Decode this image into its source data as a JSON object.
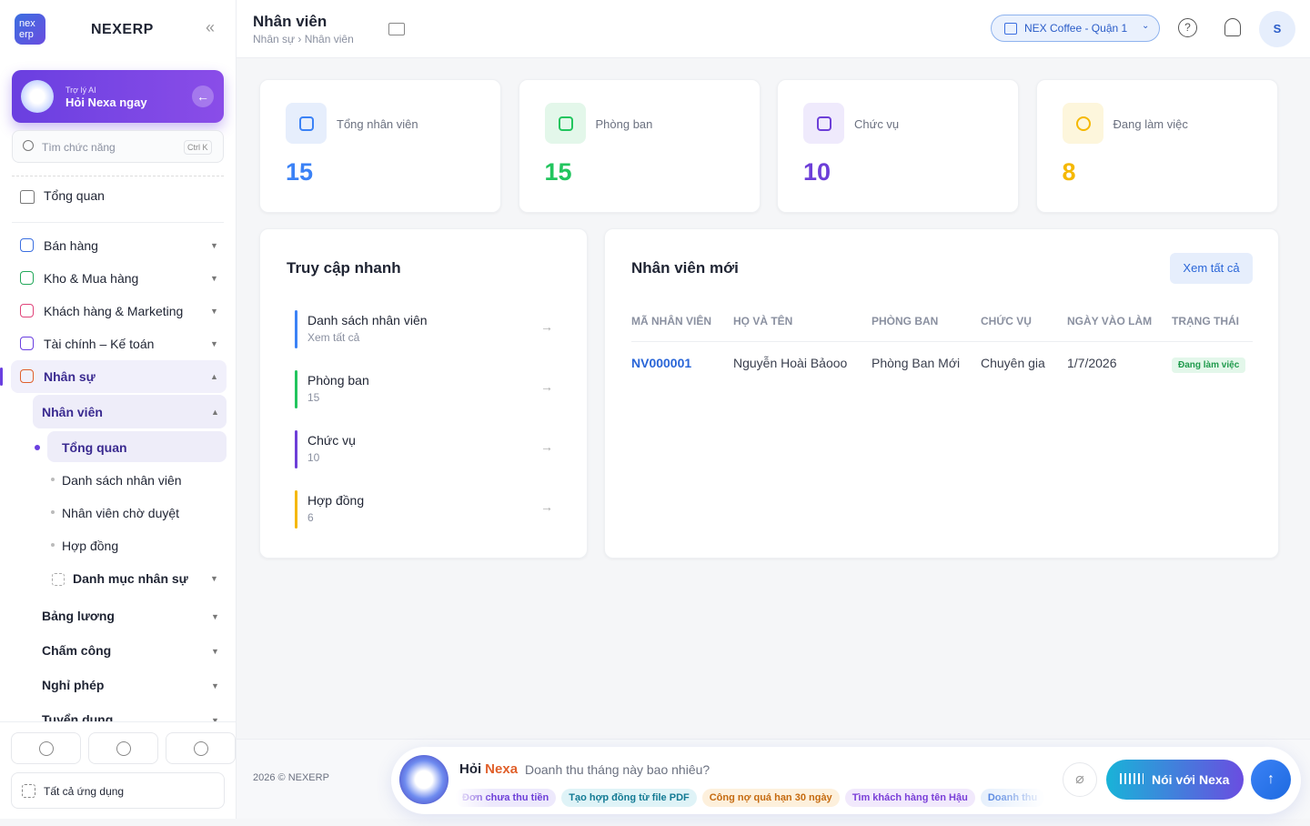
{
  "sidebar": {
    "brand": "NEXERP",
    "logo": [
      "nex",
      "erp"
    ],
    "ai": {
      "label": "Trợ lý AI",
      "action": "Hỏi Nexa ngay"
    },
    "search": {
      "placeholder": "Tìm chức năng",
      "shortcut": "Ctrl K"
    },
    "overview": "Tổng quan",
    "menu": [
      "Bán hàng",
      "Kho & Mua hàng",
      "Khách hàng & Marketing",
      "Tài chính – Kế toán",
      "Nhân sự"
    ],
    "submenu_title": "Nhân viên",
    "subitems": [
      "Tổng quan",
      "Danh sách nhân viên",
      "Nhân viên chờ duyệt",
      "Hợp đồng"
    ],
    "category": "Danh mục nhân sự",
    "more": [
      "Bảng lương",
      "Chấm công",
      "Nghỉ phép",
      "Tuyển dụng"
    ],
    "all_apps": "Tất cả ứng dụng"
  },
  "header": {
    "title": "Nhân viên",
    "breadcrumb": "Nhân sự › Nhân viên",
    "store": "NEX Coffee - Quận 1",
    "avatar": "S"
  },
  "stats": [
    {
      "label": "Tổng nhân viên",
      "value": "15"
    },
    {
      "label": "Phòng ban",
      "value": "15"
    },
    {
      "label": "Chức vụ",
      "value": "10"
    },
    {
      "label": "Đang làm việc",
      "value": "8"
    }
  ],
  "quick": {
    "title": "Truy cập nhanh",
    "items": [
      {
        "label": "Danh sách nhân viên",
        "sub": "Xem tất cả"
      },
      {
        "label": "Phòng ban",
        "sub": "15"
      },
      {
        "label": "Chức vụ",
        "sub": "10"
      },
      {
        "label": "Hợp đồng",
        "sub": "6"
      }
    ]
  },
  "recent": {
    "title": "Nhân viên mới",
    "button": "Xem tất cả",
    "columns": [
      "MÃ NHÂN VIÊN",
      "HỌ VÀ TÊN",
      "PHÒNG BAN",
      "CHỨC VỤ",
      "NGÀY VÀO LÀM",
      "TRẠNG THÁI"
    ],
    "rows": [
      [
        "NV000001",
        "Nguyễn Hoài Bảooo",
        "Phòng Ban Mới",
        "Chuyên gia",
        "1/7/2026",
        "Đang làm việc"
      ]
    ]
  },
  "footer": {
    "copyright": "2026 © NEXERP",
    "ask": "Hỏi",
    "nexa": "Nexa",
    "placeholder": "Doanh thu tháng này bao nhiêu?",
    "chips": [
      "Đơn chưa thu tiền",
      "Tạo hợp đồng từ file PDF",
      "Công nợ quá hạn 30 ngày",
      "Tìm khách hàng tên Hậu",
      "Doanh thu"
    ],
    "voice": "Nói với Nexa"
  }
}
